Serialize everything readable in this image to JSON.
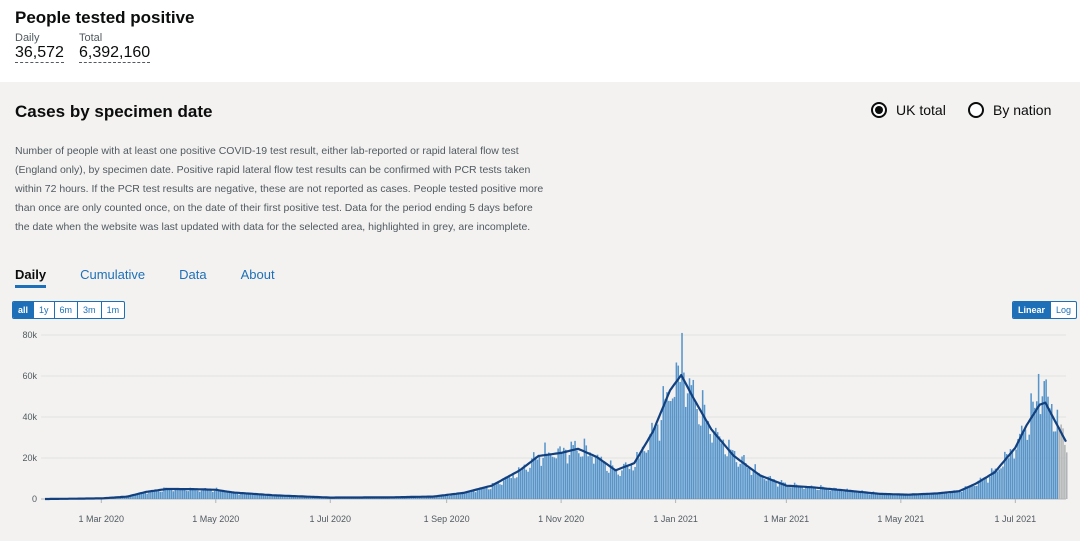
{
  "header": {
    "title": "People tested positive",
    "daily_label": "Daily",
    "daily_value": "36,572",
    "total_label": "Total",
    "total_value": "6,392,160"
  },
  "card": {
    "title": "Cases by specimen date",
    "radio_uk": "UK total",
    "radio_nation": "By nation",
    "description": "Number of people with at least one positive COVID-19 test result, either lab-reported or rapid lateral flow test (England only), by specimen date. Positive rapid lateral flow test results can be confirmed with PCR tests taken within 72 hours. If the PCR test results are negative, these are not reported as cases. People tested positive more than once are only counted once, on the date of their first positive test. Data for the period ending 5 days before the date when the website was last updated with data for the selected area, highlighted in grey, are incomplete.",
    "tabs": [
      "Daily",
      "Cumulative",
      "Data",
      "About"
    ],
    "range_buttons": [
      "all",
      "1y",
      "6m",
      "3m",
      "1m"
    ],
    "scale_buttons": [
      "Linear",
      "Log"
    ]
  },
  "colors": {
    "bar": "#5694ca",
    "line": "#12407f",
    "incomplete": "#b1b4b6",
    "accent": "#1d70b8"
  },
  "chart_data": {
    "type": "bar",
    "title": "",
    "xlabel": "",
    "ylabel": "",
    "ylim": [
      0,
      80000
    ],
    "yticks": [
      "0",
      "20k",
      "40k",
      "60k",
      "80k"
    ],
    "xticks": [
      "1 Mar 2020",
      "1 May 2020",
      "1 Jul 2020",
      "1 Sep 2020",
      "1 Nov 2020",
      "1 Jan 2021",
      "1 Mar 2021",
      "1 May 2021",
      "1 Jul 2021"
    ],
    "x_start": "2020-01-31",
    "x_end": "2021-07-28",
    "grid": true,
    "anchors_daily": [
      [
        "2020-01-31",
        0
      ],
      [
        "2020-03-01",
        300
      ],
      [
        "2020-03-15",
        1200
      ],
      [
        "2020-03-25",
        3500
      ],
      [
        "2020-04-05",
        5000
      ],
      [
        "2020-04-20",
        4800
      ],
      [
        "2020-05-01",
        4500
      ],
      [
        "2020-05-10",
        3200
      ],
      [
        "2020-06-01",
        1800
      ],
      [
        "2020-07-01",
        700
      ],
      [
        "2020-08-01",
        800
      ],
      [
        "2020-08-25",
        1200
      ],
      [
        "2020-09-10",
        3000
      ],
      [
        "2020-09-25",
        6500
      ],
      [
        "2020-10-10",
        14000
      ],
      [
        "2020-10-20",
        22000
      ],
      [
        "2020-11-01",
        24000
      ],
      [
        "2020-11-10",
        26000
      ],
      [
        "2020-11-20",
        21000
      ],
      [
        "2020-11-30",
        14000
      ],
      [
        "2020-12-10",
        18000
      ],
      [
        "2020-12-20",
        34000
      ],
      [
        "2020-12-29",
        55000
      ],
      [
        "2021-01-04",
        65000
      ],
      [
        "2021-01-10",
        52000
      ],
      [
        "2021-01-20",
        35000
      ],
      [
        "2021-02-01",
        22000
      ],
      [
        "2021-02-15",
        12000
      ],
      [
        "2021-03-01",
        7000
      ],
      [
        "2021-03-15",
        6000
      ],
      [
        "2021-04-01",
        4500
      ],
      [
        "2021-04-20",
        2600
      ],
      [
        "2021-05-05",
        2200
      ],
      [
        "2021-05-20",
        2800
      ],
      [
        "2021-06-01",
        4000
      ],
      [
        "2021-06-10",
        8000
      ],
      [
        "2021-06-20",
        14000
      ],
      [
        "2021-07-01",
        27000
      ],
      [
        "2021-07-07",
        38000
      ],
      [
        "2021-07-14",
        52000
      ],
      [
        "2021-07-17",
        55000
      ],
      [
        "2021-07-21",
        42000
      ],
      [
        "2021-07-28",
        29000
      ]
    ],
    "series": [
      {
        "name": "Daily",
        "kind": "bar"
      },
      {
        "name": "7-day average",
        "kind": "line",
        "points": [
          [
            "2020-01-31",
            0
          ],
          [
            "2020-03-01",
            300
          ],
          [
            "2020-03-15",
            1200
          ],
          [
            "2020-03-25",
            3500
          ],
          [
            "2020-04-05",
            4900
          ],
          [
            "2020-04-20",
            4800
          ],
          [
            "2020-05-01",
            4500
          ],
          [
            "2020-05-10",
            3200
          ],
          [
            "2020-06-01",
            1800
          ],
          [
            "2020-07-01",
            700
          ],
          [
            "2020-08-01",
            800
          ],
          [
            "2020-08-25",
            1200
          ],
          [
            "2020-09-10",
            3000
          ],
          [
            "2020-09-25",
            6500
          ],
          [
            "2020-10-10",
            14000
          ],
          [
            "2020-10-20",
            21000
          ],
          [
            "2020-11-01",
            22500
          ],
          [
            "2020-11-10",
            24500
          ],
          [
            "2020-11-20",
            20500
          ],
          [
            "2020-11-30",
            14000
          ],
          [
            "2020-12-10",
            17500
          ],
          [
            "2020-12-20",
            33000
          ],
          [
            "2020-12-29",
            53000
          ],
          [
            "2021-01-04",
            60500
          ],
          [
            "2021-01-10",
            50000
          ],
          [
            "2021-01-20",
            34000
          ],
          [
            "2021-02-01",
            21000
          ],
          [
            "2021-02-15",
            11500
          ],
          [
            "2021-03-01",
            6500
          ],
          [
            "2021-03-15",
            5700
          ],
          [
            "2021-04-01",
            4200
          ],
          [
            "2021-04-20",
            2500
          ],
          [
            "2021-05-05",
            2100
          ],
          [
            "2021-05-20",
            2700
          ],
          [
            "2021-06-01",
            3800
          ],
          [
            "2021-06-10",
            7500
          ],
          [
            "2021-06-20",
            13000
          ],
          [
            "2021-07-01",
            25000
          ],
          [
            "2021-07-07",
            36000
          ],
          [
            "2021-07-14",
            46000
          ],
          [
            "2021-07-17",
            47000
          ],
          [
            "2021-07-21",
            40000
          ],
          [
            "2021-07-28",
            28000
          ]
        ]
      }
    ],
    "incomplete_days": 5
  }
}
